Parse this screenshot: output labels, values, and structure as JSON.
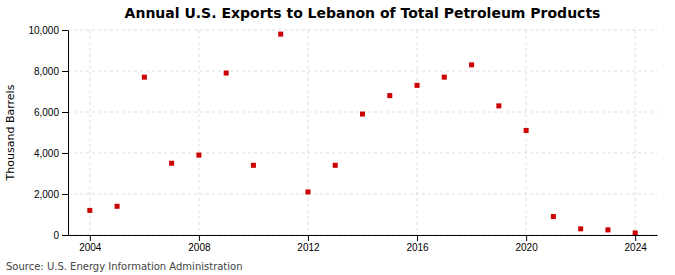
{
  "chart_data": {
    "type": "scatter",
    "title": "Annual U.S. Exports to Lebanon of Total Petroleum Products",
    "ylabel": "Thousand Barrels",
    "source": "Source: U.S. Energy Information Administration",
    "x": [
      2004,
      2005,
      2006,
      2007,
      2008,
      2009,
      2010,
      2011,
      2012,
      2013,
      2014,
      2015,
      2016,
      2017,
      2018,
      2019,
      2020,
      2021,
      2022,
      2023,
      2024
    ],
    "values": [
      1200,
      1400,
      7700,
      3500,
      3900,
      7900,
      3400,
      9800,
      2100,
      3400,
      5900,
      6800,
      7300,
      7700,
      8300,
      6300,
      5100,
      900,
      300,
      250,
      100
    ],
    "color": "#cc0000",
    "marker": "square",
    "xlim": [
      2003.2,
      2024.8
    ],
    "ylim": [
      0,
      10000
    ],
    "xticks": [
      2004,
      2008,
      2012,
      2016,
      2020,
      2024
    ],
    "yticks": [
      0,
      {
        "value": 2000,
        "label": "2,000"
      },
      {
        "value": 4000,
        "label": "4,000"
      },
      {
        "value": 6000,
        "label": "6,000"
      },
      {
        "value": 8000,
        "label": "8,000"
      },
      {
        "value": 10000,
        "label": "10,000"
      }
    ],
    "grid": true
  }
}
